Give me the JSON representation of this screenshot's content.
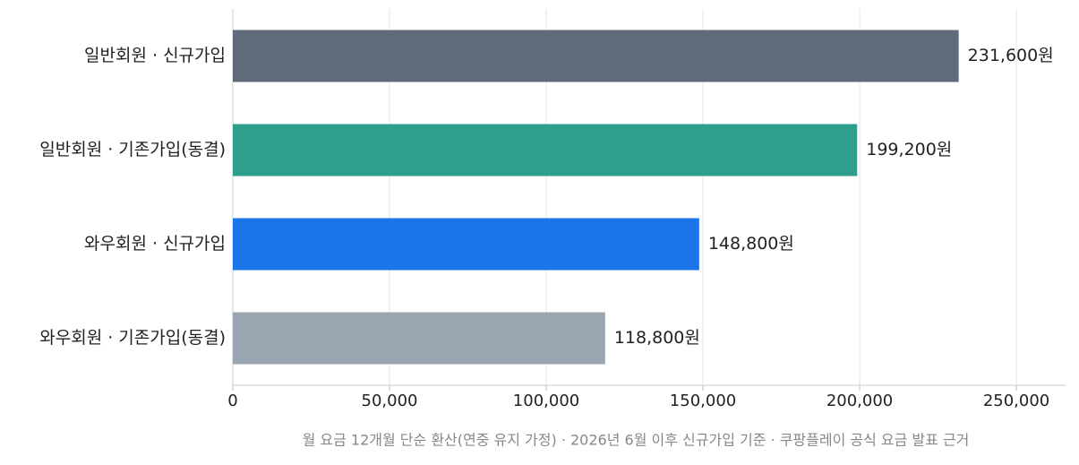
{
  "chart_data": {
    "type": "bar",
    "orientation": "horizontal",
    "categories": [
      "일반회원 · 신규가입",
      "일반회원 · 기존가입(동결)",
      "와우회원 · 신규가입",
      "와우회원 · 기존가입(동결)"
    ],
    "values": [
      231600,
      199200,
      148800,
      118800
    ],
    "value_labels": [
      "231,600원",
      "199,200원",
      "148,800원",
      "118,800원"
    ],
    "colors": [
      "#5f6b7a",
      "#2e9e8d",
      "#1b74e8",
      "#99a6b2"
    ],
    "xlim": [
      0,
      265700
    ],
    "xticks": [
      0,
      {
        "value": 50000,
        "label": "50,000"
      },
      {
        "value": 100000,
        "label": "100,000"
      },
      {
        "value": 150000,
        "label": "150,000"
      },
      {
        "value": 200000,
        "label": "200,000"
      },
      {
        "value": 250000,
        "label": "250,000"
      }
    ],
    "grid": true,
    "note": "월 요금 12개월 단순 환산(연중 유지 가정) · 2026년 6월 이후 신규가입 기준 · 쿠팡플레이 공식 요금 발표 근거"
  }
}
